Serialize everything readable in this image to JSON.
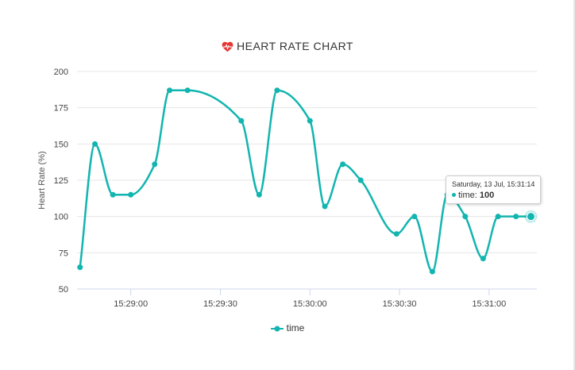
{
  "chart_data": {
    "type": "line",
    "title": "HEART RATE CHART",
    "ylabel": "Heart Rate (%)",
    "xlabel": "",
    "ylim": [
      50,
      200
    ],
    "yticks": [
      50,
      75,
      100,
      125,
      150,
      175,
      200
    ],
    "xticks": [
      "15:29:00",
      "15:29:30",
      "15:30:00",
      "15:30:30",
      "15:31:00"
    ],
    "xlim": [
      "15:28:42",
      "15:31:16"
    ],
    "grid": true,
    "legend_position": "bottom-center",
    "series": [
      {
        "name": "time",
        "color": "#12b5b0",
        "points": [
          {
            "x": "15:28:43",
            "y": 65
          },
          {
            "x": "15:28:48",
            "y": 150
          },
          {
            "x": "15:28:54",
            "y": 115
          },
          {
            "x": "15:29:00",
            "y": 115
          },
          {
            "x": "15:29:08",
            "y": 136
          },
          {
            "x": "15:29:13",
            "y": 187
          },
          {
            "x": "15:29:19",
            "y": 187
          },
          {
            "x": "15:29:37",
            "y": 166
          },
          {
            "x": "15:29:43",
            "y": 115
          },
          {
            "x": "15:29:49",
            "y": 187
          },
          {
            "x": "15:30:00",
            "y": 166
          },
          {
            "x": "15:30:05",
            "y": 107
          },
          {
            "x": "15:30:11",
            "y": 136
          },
          {
            "x": "15:30:17",
            "y": 125
          },
          {
            "x": "15:30:29",
            "y": 88
          },
          {
            "x": "15:30:35",
            "y": 100
          },
          {
            "x": "15:30:41",
            "y": 62
          },
          {
            "x": "15:30:46",
            "y": 115
          },
          {
            "x": "15:30:52",
            "y": 100
          },
          {
            "x": "15:30:58",
            "y": 71
          },
          {
            "x": "15:31:03",
            "y": 100
          },
          {
            "x": "15:31:09",
            "y": 100
          },
          {
            "x": "15:31:14",
            "y": 100
          }
        ]
      }
    ],
    "tooltip": {
      "date": "Saturday, 13 Jul, 15:31:14",
      "label": "time: ",
      "value": "100"
    }
  },
  "icons": {
    "title_icon": "heart-rate-icon",
    "title_icon_color": "#e53935"
  },
  "legend": {
    "label": "time"
  }
}
